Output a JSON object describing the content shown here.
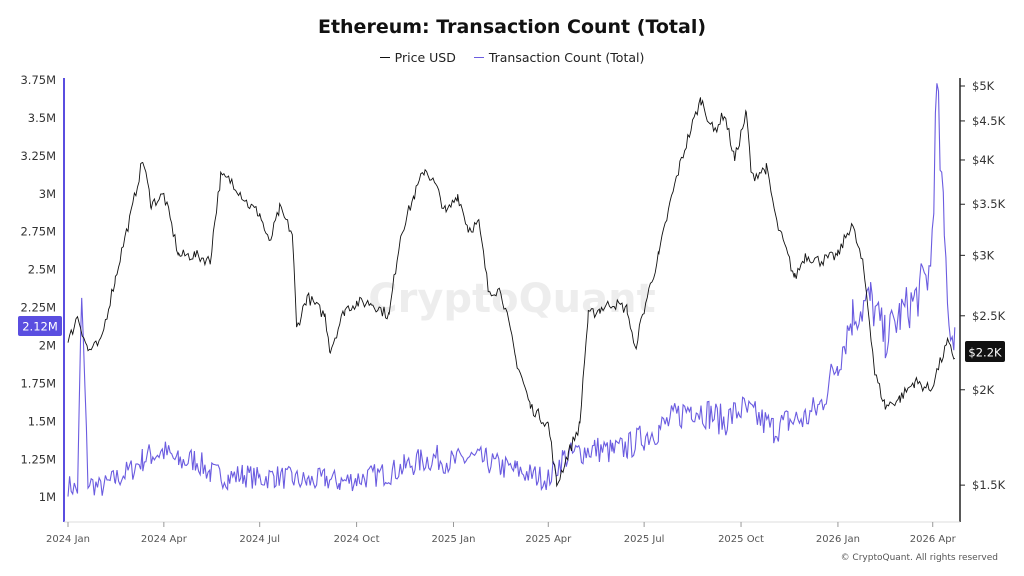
{
  "chart_data": {
    "type": "line",
    "title": "Ethereum: Transaction Count (Total)",
    "watermark": "CryptoQuant",
    "copyright": "© CryptoQuant. All rights reserved",
    "colors": {
      "price": "#111111",
      "tx": "#6b5ce0",
      "current_label_bg": "#5a4ee0"
    },
    "x_ticks": [
      "2024 Jan",
      "2024 Apr",
      "2024 Jul",
      "2024 Oct",
      "2025 Jan",
      "2025 Apr",
      "2025 Jul",
      "2025 Oct",
      "2026 Jan",
      "2026 Apr"
    ],
    "left_axis": {
      "series": "Transaction Count (Total)",
      "ticks": [
        "1M",
        "1.25M",
        "1.5M",
        "1.75M",
        "2M",
        "2.25M",
        "2.5M",
        "2.75M",
        "3M",
        "3.25M",
        "3.5M",
        "3.75M"
      ],
      "range": [
        850000,
        3750000
      ],
      "current_value_label": "2.12M"
    },
    "right_axis": {
      "series": "Price USD",
      "scale": "log",
      "ticks": [
        "$1.5K",
        "$2K",
        "$2.5K",
        "$3K",
        "$3.5K",
        "$4K",
        "$4.5K",
        "$5K"
      ],
      "range": [
        1400,
        5000
      ],
      "current_value_label": "$2.2K"
    },
    "series": [
      {
        "name": "Price USD",
        "axis": "right",
        "points": [
          [
            "2024-01-01",
            2300
          ],
          [
            "2024-01-10",
            2500
          ],
          [
            "2024-01-20",
            2250
          ],
          [
            "2024-02-01",
            2300
          ],
          [
            "2024-02-15",
            2800
          ],
          [
            "2024-03-01",
            3400
          ],
          [
            "2024-03-12",
            4000
          ],
          [
            "2024-03-20",
            3500
          ],
          [
            "2024-04-01",
            3600
          ],
          [
            "2024-04-15",
            3000
          ],
          [
            "2024-05-01",
            3000
          ],
          [
            "2024-05-15",
            2950
          ],
          [
            "2024-05-25",
            3800
          ],
          [
            "2024-06-05",
            3750
          ],
          [
            "2024-06-20",
            3500
          ],
          [
            "2024-07-01",
            3400
          ],
          [
            "2024-07-10",
            3100
          ],
          [
            "2024-07-20",
            3450
          ],
          [
            "2024-08-01",
            3200
          ],
          [
            "2024-08-05",
            2400
          ],
          [
            "2024-08-15",
            2650
          ],
          [
            "2024-09-01",
            2500
          ],
          [
            "2024-09-06",
            2250
          ],
          [
            "2024-09-20",
            2550
          ],
          [
            "2024-10-01",
            2600
          ],
          [
            "2024-10-15",
            2600
          ],
          [
            "2024-11-01",
            2500
          ],
          [
            "2024-11-12",
            3200
          ],
          [
            "2024-11-25",
            3600
          ],
          [
            "2024-12-05",
            3900
          ],
          [
            "2024-12-15",
            3700
          ],
          [
            "2024-12-25",
            3400
          ],
          [
            "2025-01-05",
            3600
          ],
          [
            "2025-01-15",
            3250
          ],
          [
            "2025-01-25",
            3300
          ],
          [
            "2025-02-03",
            2700
          ],
          [
            "2025-02-15",
            2700
          ],
          [
            "2025-03-01",
            2200
          ],
          [
            "2025-03-15",
            1900
          ],
          [
            "2025-04-01",
            1800
          ],
          [
            "2025-04-09",
            1500
          ],
          [
            "2025-04-20",
            1650
          ],
          [
            "2025-05-01",
            1800
          ],
          [
            "2025-05-09",
            2500
          ],
          [
            "2025-05-20",
            2550
          ],
          [
            "2025-06-01",
            2600
          ],
          [
            "2025-06-15",
            2550
          ],
          [
            "2025-06-22",
            2250
          ],
          [
            "2025-07-01",
            2550
          ],
          [
            "2025-07-15",
            3000
          ],
          [
            "2025-08-01",
            3800
          ],
          [
            "2025-08-10",
            4200
          ],
          [
            "2025-08-24",
            4800
          ],
          [
            "2025-09-05",
            4350
          ],
          [
            "2025-09-15",
            4600
          ],
          [
            "2025-09-25",
            4000
          ],
          [
            "2025-10-06",
            4600
          ],
          [
            "2025-10-11",
            3800
          ],
          [
            "2025-10-25",
            3900
          ],
          [
            "2025-11-04",
            3300
          ],
          [
            "2025-11-21",
            2800
          ],
          [
            "2025-12-01",
            3000
          ],
          [
            "2025-12-15",
            2950
          ],
          [
            "2026-01-01",
            3000
          ],
          [
            "2026-01-14",
            3300
          ],
          [
            "2026-01-25",
            2900
          ],
          [
            "2026-02-05",
            2100
          ],
          [
            "2026-02-15",
            1900
          ],
          [
            "2026-03-01",
            1950
          ],
          [
            "2026-03-15",
            2050
          ],
          [
            "2026-03-30",
            2000
          ],
          [
            "2026-04-15",
            2300
          ],
          [
            "2026-04-22",
            2200
          ]
        ]
      },
      {
        "name": "Transaction Count (Total)",
        "axis": "left",
        "points": [
          [
            "2024-01-01",
            1080000
          ],
          [
            "2024-01-10",
            1050000
          ],
          [
            "2024-01-14",
            2300000
          ],
          [
            "2024-01-20",
            1100000
          ],
          [
            "2024-02-01",
            1060000
          ],
          [
            "2024-02-15",
            1120000
          ],
          [
            "2024-03-01",
            1180000
          ],
          [
            "2024-03-12",
            1250000
          ],
          [
            "2024-03-20",
            1280000
          ],
          [
            "2024-04-01",
            1300000
          ],
          [
            "2024-04-15",
            1230000
          ],
          [
            "2024-05-01",
            1250000
          ],
          [
            "2024-05-15",
            1160000
          ],
          [
            "2024-06-01",
            1130000
          ],
          [
            "2024-06-15",
            1150000
          ],
          [
            "2024-07-01",
            1120000
          ],
          [
            "2024-07-15",
            1140000
          ],
          [
            "2024-08-01",
            1120000
          ],
          [
            "2024-08-15",
            1100000
          ],
          [
            "2024-09-01",
            1120000
          ],
          [
            "2024-09-15",
            1100000
          ],
          [
            "2024-10-01",
            1120000
          ],
          [
            "2024-10-15",
            1140000
          ],
          [
            "2024-11-01",
            1160000
          ],
          [
            "2024-11-15",
            1200000
          ],
          [
            "2024-12-01",
            1240000
          ],
          [
            "2024-12-15",
            1260000
          ],
          [
            "2025-01-01",
            1230000
          ],
          [
            "2025-01-15",
            1260000
          ],
          [
            "2025-02-01",
            1240000
          ],
          [
            "2025-02-15",
            1200000
          ],
          [
            "2025-03-01",
            1180000
          ],
          [
            "2025-03-15",
            1150000
          ],
          [
            "2025-04-01",
            1120000
          ],
          [
            "2025-04-15",
            1260000
          ],
          [
            "2025-05-01",
            1300000
          ],
          [
            "2025-05-15",
            1320000
          ],
          [
            "2025-06-01",
            1300000
          ],
          [
            "2025-06-15",
            1330000
          ],
          [
            "2025-07-01",
            1400000
          ],
          [
            "2025-07-15",
            1450000
          ],
          [
            "2025-08-01",
            1530000
          ],
          [
            "2025-08-15",
            1600000
          ],
          [
            "2025-09-01",
            1550000
          ],
          [
            "2025-09-15",
            1500000
          ],
          [
            "2025-10-01",
            1580000
          ],
          [
            "2025-10-15",
            1530000
          ],
          [
            "2025-11-01",
            1450000
          ],
          [
            "2025-11-15",
            1500000
          ],
          [
            "2025-12-01",
            1520000
          ],
          [
            "2025-12-15",
            1600000
          ],
          [
            "2026-01-01",
            1900000
          ],
          [
            "2026-01-15",
            2200000
          ],
          [
            "2026-02-01",
            2300000
          ],
          [
            "2026-02-15",
            2050000
          ],
          [
            "2026-03-01",
            2200000
          ],
          [
            "2026-03-15",
            2300000
          ],
          [
            "2026-03-30",
            2500000
          ],
          [
            "2026-04-05",
            3650000
          ],
          [
            "2026-04-12",
            2700000
          ],
          [
            "2026-04-18",
            2050000
          ],
          [
            "2026-04-22",
            2120000
          ]
        ]
      }
    ]
  }
}
